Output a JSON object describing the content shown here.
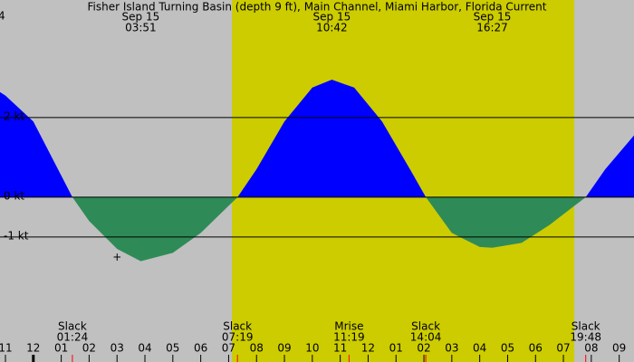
{
  "chart_data": {
    "type": "current",
    "title": "Fisher Island Turning Basin (depth 9 ft), Main Channel, Miami Harbor, Florida Current",
    "corner_label": "4",
    "cursor_label": "+",
    "x": [
      -1.2,
      -1,
      0,
      1.4,
      2,
      3,
      3.85,
      5,
      6,
      7.32,
      8,
      9,
      10,
      10.7,
      11.5,
      12.5,
      13.5,
      14.07,
      15,
      16,
      16.45,
      17.5,
      18.5,
      19.8,
      20.5,
      21.53
    ],
    "series": [
      {
        "name": "current",
        "flood_color": "#0000ff",
        "ebb_color": "#2e8b57",
        "values": [
          2.64,
          2.55,
          1.9,
          0,
          -0.6,
          -1.3,
          -1.61,
          -1.4,
          -0.9,
          0,
          0.7,
          1.9,
          2.75,
          2.95,
          2.75,
          1.9,
          0.7,
          0,
          -0.9,
          -1.25,
          -1.27,
          -1.15,
          -0.7,
          0,
          0.7,
          1.55
        ]
      }
    ],
    "xlim": [
      -1.195,
      21.53
    ],
    "ylim": [
      -4.14,
      4.95
    ],
    "yticks": [
      {
        "value": -1,
        "label": "-1 kt"
      },
      {
        "value": 0,
        "label": "0 kt"
      },
      {
        "value": 2,
        "label": "2 kt"
      }
    ],
    "xticks": [
      {
        "value": -1,
        "label": "11"
      },
      {
        "value": 0,
        "label": "12"
      },
      {
        "value": 1,
        "label": "01"
      },
      {
        "value": 2,
        "label": "02"
      },
      {
        "value": 3,
        "label": "03"
      },
      {
        "value": 4,
        "label": "04"
      },
      {
        "value": 5,
        "label": "05"
      },
      {
        "value": 6,
        "label": "06"
      },
      {
        "value": 7,
        "label": "07"
      },
      {
        "value": 8,
        "label": "08"
      },
      {
        "value": 9,
        "label": "09"
      },
      {
        "value": 10,
        "label": "10"
      },
      {
        "value": 11,
        "label": "11"
      },
      {
        "value": 12,
        "label": "12"
      },
      {
        "value": 13,
        "label": "01"
      },
      {
        "value": 14,
        "label": "02"
      },
      {
        "value": 15,
        "label": "03"
      },
      {
        "value": 16,
        "label": "04"
      },
      {
        "value": 17,
        "label": "05"
      },
      {
        "value": 18,
        "label": "06"
      },
      {
        "value": 19,
        "label": "07"
      },
      {
        "value": 20,
        "label": "08"
      },
      {
        "value": 21,
        "label": "09"
      }
    ],
    "daylight": [
      7.12,
      19.39
    ],
    "night_color": "#c0c0c0",
    "day_color": "#cccc00",
    "top_events": [
      {
        "date": "Sep 15",
        "time": "03:51"
      },
      {
        "date": "Sep 15",
        "time": "10:42"
      },
      {
        "date": "Sep 15",
        "time": "16:27"
      }
    ],
    "bottom_events": [
      {
        "label": "Slack",
        "time": "01:24"
      },
      {
        "label": "Slack",
        "time": "07:19"
      },
      {
        "label": "Mrise",
        "time": "11:19"
      },
      {
        "label": "Slack",
        "time": "14:04"
      },
      {
        "label": "Slack",
        "time": "19:48"
      }
    ]
  }
}
